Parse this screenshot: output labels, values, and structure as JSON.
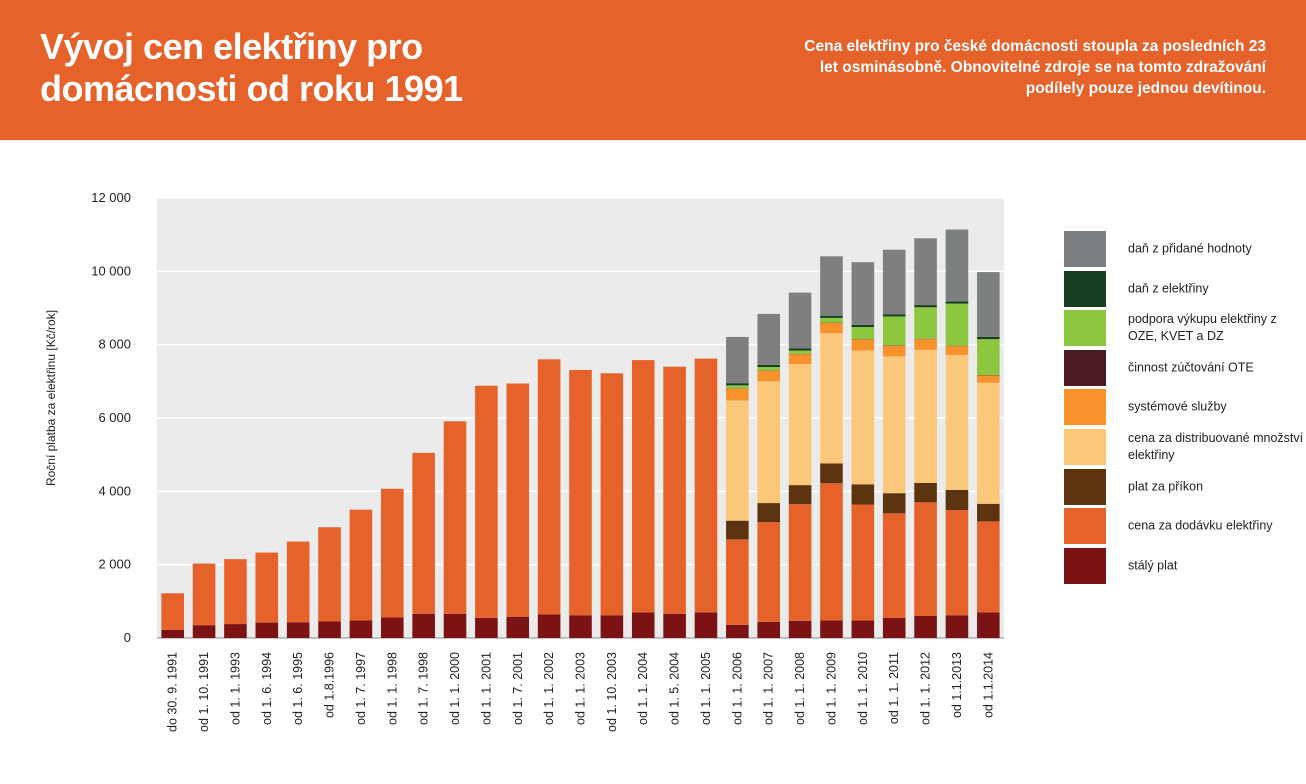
{
  "header": {
    "title": "Vývoj cen elektřiny pro domácnosti od roku 1991",
    "subtitle": "Cena elektřiny pro české domácnosti stoupla za posledních 23 let osminásobně. Obnovitelné zdroje se na tomto zdražování podílely pouze jednou devítinou."
  },
  "colors": {
    "header_bg": "#e5622b",
    "plot_bg": "#ebebeb"
  },
  "chart_data": {
    "type": "bar",
    "stacked": true,
    "ylabel": "Roční platba za elektřinu [Kč/rok]",
    "ylim": [
      0,
      12000
    ],
    "yticks": [
      {
        "value": 0,
        "label": "0"
      },
      {
        "value": 2000,
        "label": "2 000"
      },
      {
        "value": 4000,
        "label": "4 000"
      },
      {
        "value": 6000,
        "label": "6 000"
      },
      {
        "value": 8000,
        "label": "8 000"
      },
      {
        "value": 10000,
        "label": "10 000"
      },
      {
        "value": 12000,
        "label": "12 000"
      }
    ],
    "grid": true,
    "legend_position": "right",
    "categories": [
      "do 30. 9. 1991",
      "od 1. 10. 1991",
      "od 1. 1. 1993",
      "od 1. 6. 1994",
      "od 1. 6. 1995",
      "od 1.8.1996",
      "od 1. 7. 1997",
      "od 1. 1. 1998",
      "od 1. 7. 1998",
      "od 1. 1. 2000",
      "od 1. 1. 2001",
      "od 1. 7. 2001",
      "od 1. 1. 2002",
      "od 1. 1. 2003",
      "od 1. 10. 2003",
      "od 1. 1. 2004",
      "od 1. 5. 2004",
      "od 1. 1. 2005",
      "od 1. 1. 2006",
      "od 1. 1. 2007",
      "od 1. 1. 2008",
      "od 1. 1. 2009",
      "od 1. 1. 2010",
      "od 1. 1. 2011",
      "od 1. 1. 2012",
      "od 1.1.2013",
      "od 1.1.2014"
    ],
    "series": [
      {
        "name": "stálý plat",
        "color": "#7b1214",
        "values": [
          220,
          350,
          380,
          420,
          430,
          450,
          480,
          560,
          660,
          660,
          550,
          580,
          640,
          620,
          620,
          700,
          660,
          700,
          360,
          440,
          470,
          480,
          480,
          550,
          600,
          620,
          700
        ]
      },
      {
        "name": "cena za dodávku elektřiny",
        "color": "#e5622b",
        "values": [
          1000,
          1680,
          1770,
          1910,
          2200,
          2570,
          3020,
          3510,
          4390,
          5250,
          6330,
          6360,
          6960,
          6690,
          6600,
          6880,
          6740,
          6920,
          2330,
          2720,
          3180,
          3740,
          3160,
          2850,
          3100,
          2870,
          2480
        ]
      },
      {
        "name": "plat za příkon",
        "color": "#5c3510",
        "values": [
          0,
          0,
          0,
          0,
          0,
          0,
          0,
          0,
          0,
          0,
          0,
          0,
          0,
          0,
          0,
          0,
          0,
          0,
          510,
          520,
          520,
          540,
          550,
          550,
          530,
          550,
          480
        ]
      },
      {
        "name": "cena za distribuované množství elektřiny",
        "color": "#fbc77a",
        "values": [
          0,
          0,
          0,
          0,
          0,
          0,
          0,
          0,
          0,
          0,
          0,
          0,
          0,
          0,
          0,
          0,
          0,
          0,
          3280,
          3320,
          3300,
          3550,
          3650,
          3730,
          3630,
          3680,
          3300
        ]
      },
      {
        "name": "systémové služby",
        "color": "#f7922c",
        "values": [
          0,
          0,
          0,
          0,
          0,
          0,
          0,
          0,
          0,
          0,
          0,
          0,
          0,
          0,
          0,
          0,
          0,
          0,
          320,
          290,
          270,
          280,
          300,
          290,
          290,
          240,
          200
        ]
      },
      {
        "name": "činnost zúčtování OTE",
        "color": "#4b1a22",
        "values": [
          0,
          0,
          0,
          0,
          0,
          0,
          0,
          0,
          0,
          0,
          0,
          0,
          0,
          0,
          0,
          0,
          0,
          0,
          10,
          10,
          10,
          10,
          10,
          10,
          10,
          10,
          10
        ]
      },
      {
        "name": "podpora výkupu elektřiny z OZE, KVET a DZ",
        "color": "#8dc63f",
        "values": [
          0,
          0,
          0,
          0,
          0,
          0,
          0,
          0,
          0,
          0,
          0,
          0,
          0,
          0,
          0,
          0,
          0,
          0,
          80,
          90,
          90,
          130,
          330,
          790,
          860,
          1150,
          980
        ]
      },
      {
        "name": "daň z elektřiny",
        "color": "#183f22",
        "values": [
          0,
          0,
          0,
          0,
          0,
          0,
          0,
          0,
          0,
          0,
          0,
          0,
          0,
          0,
          0,
          0,
          0,
          0,
          60,
          60,
          60,
          60,
          60,
          60,
          60,
          60,
          60
        ]
      },
      {
        "name": "daň z přidané hodnoty",
        "color": "#7d7f80",
        "values": [
          0,
          0,
          0,
          0,
          0,
          0,
          0,
          0,
          0,
          0,
          0,
          0,
          0,
          0,
          0,
          0,
          0,
          0,
          1260,
          1390,
          1520,
          1620,
          1710,
          1760,
          1820,
          1960,
          1770
        ]
      }
    ],
    "legend_order": [
      "daň z přidané hodnoty",
      "daň z elektřiny",
      "podpora výkupu elektřiny z OZE, KVET a DZ",
      "činnost zúčtování OTE",
      "systémové služby",
      "cena za distribuované množství elektřiny",
      "plat za příkon",
      "cena za dodávku elektřiny",
      "stálý plat"
    ]
  }
}
